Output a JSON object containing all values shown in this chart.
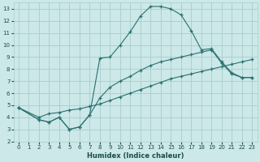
{
  "xlabel": "Humidex (Indice chaleur)",
  "xlim": [
    -0.5,
    23.5
  ],
  "ylim": [
    2,
    13.5
  ],
  "xticks": [
    0,
    1,
    2,
    3,
    4,
    5,
    6,
    7,
    8,
    9,
    10,
    11,
    12,
    13,
    14,
    15,
    16,
    17,
    18,
    19,
    20,
    21,
    22,
    23
  ],
  "yticks": [
    2,
    3,
    4,
    5,
    6,
    7,
    8,
    9,
    10,
    11,
    12,
    13
  ],
  "bg_color": "#cce8e8",
  "grid_color": "#aacccc",
  "line_color": "#2a7070",
  "line1_x": [
    0,
    2,
    3,
    4,
    5,
    6,
    7,
    8,
    9,
    10,
    11,
    12,
    13,
    14,
    15,
    16,
    17,
    18,
    19,
    20,
    21,
    22,
    23
  ],
  "line1_y": [
    4.8,
    4.0,
    4.3,
    4.4,
    4.6,
    4.7,
    4.9,
    5.1,
    5.4,
    5.7,
    6.0,
    6.3,
    6.6,
    6.9,
    7.2,
    7.4,
    7.6,
    7.8,
    8.0,
    8.2,
    8.4,
    8.6,
    8.8
  ],
  "line2_x": [
    0,
    2,
    3,
    4,
    5,
    6,
    7,
    8,
    9,
    10,
    11,
    12,
    13,
    14,
    15,
    16,
    17,
    18,
    19,
    20,
    21,
    22,
    23
  ],
  "line2_y": [
    4.8,
    3.8,
    3.6,
    4.0,
    3.0,
    3.2,
    4.2,
    5.6,
    6.5,
    7.0,
    7.4,
    7.9,
    8.3,
    8.6,
    8.8,
    9.0,
    9.2,
    9.4,
    9.6,
    8.5,
    7.6,
    7.3,
    7.3
  ],
  "line3_x": [
    0,
    2,
    3,
    4,
    5,
    6,
    7,
    8,
    9,
    10,
    11,
    12,
    13,
    14,
    15,
    16,
    17,
    18,
    19,
    20,
    21,
    22,
    23
  ],
  "line3_y": [
    4.8,
    3.8,
    3.6,
    4.0,
    3.0,
    3.2,
    4.2,
    8.9,
    9.0,
    10.0,
    11.1,
    12.4,
    13.2,
    13.2,
    13.0,
    12.5,
    11.2,
    9.6,
    9.7,
    8.6,
    7.7,
    7.3,
    7.3
  ]
}
